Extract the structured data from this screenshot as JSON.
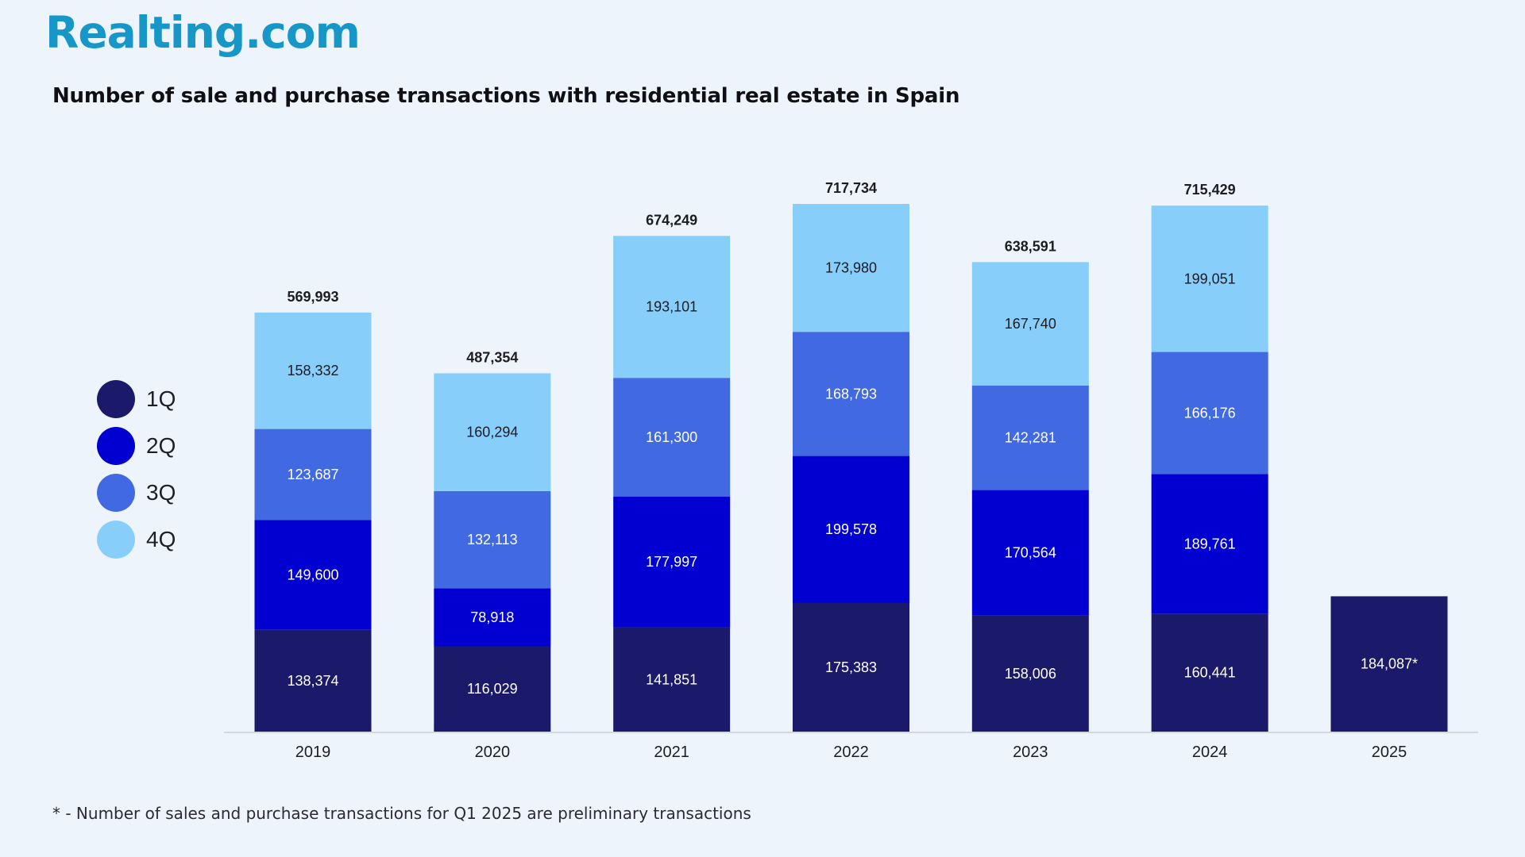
{
  "brand": {
    "logo_text": "Realting.com",
    "color": "#1797c8"
  },
  "colors": {
    "background": "#edf4fb",
    "q1": "#1b1a6a",
    "q2": "#0100d0",
    "q3": "#4169e1",
    "q4": "#87cefa"
  },
  "legend": {
    "items": [
      {
        "label": "1Q",
        "color": "#1b1a6a"
      },
      {
        "label": "2Q",
        "color": "#0100d0"
      },
      {
        "label": "3Q",
        "color": "#4169e1"
      },
      {
        "label": "4Q",
        "color": "#87cefa"
      }
    ]
  },
  "footnote": "* - Number of sales and purchase transactions for Q1 2025 are preliminary transactions",
  "chart_data": {
    "type": "bar",
    "stacked": true,
    "title": "Number of sale and purchase transactions with residential real estate in Spain",
    "xlabel": "",
    "ylabel": "",
    "grid": false,
    "legend_position": "left",
    "categories": [
      "2019",
      "2020",
      "2021",
      "2022",
      "2023",
      "2024",
      "2025"
    ],
    "series": [
      {
        "name": "1Q",
        "values": [
          138374,
          116029,
          141851,
          175383,
          158006,
          160441,
          184087
        ],
        "labels": [
          "138,374",
          "116,029",
          "141,851",
          "175,383",
          "158,006",
          "160,441",
          "184,087*"
        ]
      },
      {
        "name": "2Q",
        "values": [
          149600,
          78918,
          177997,
          199578,
          170564,
          189761,
          null
        ],
        "labels": [
          "149,600",
          "78,918",
          "177,997",
          "199,578",
          "170,564",
          "189,761",
          ""
        ]
      },
      {
        "name": "3Q",
        "values": [
          123687,
          132113,
          161300,
          168793,
          142281,
          166176,
          null
        ],
        "labels": [
          "123,687",
          "132,113",
          "161,300",
          "168,793",
          "142,281",
          "166,176",
          ""
        ]
      },
      {
        "name": "4Q",
        "values": [
          158332,
          160294,
          193101,
          173980,
          167740,
          199051,
          null
        ],
        "labels": [
          "158,332",
          "160,294",
          "193,101",
          "173,980",
          "167,740",
          "199,051",
          ""
        ]
      }
    ],
    "totals": [
      569993,
      487354,
      674249,
      717734,
      638591,
      715429,
      null
    ],
    "total_labels": [
      "569,993",
      "487,354",
      "674,249",
      "717,734",
      "638,591",
      "715,429",
      ""
    ],
    "ylim": [
      0,
      717734
    ]
  }
}
